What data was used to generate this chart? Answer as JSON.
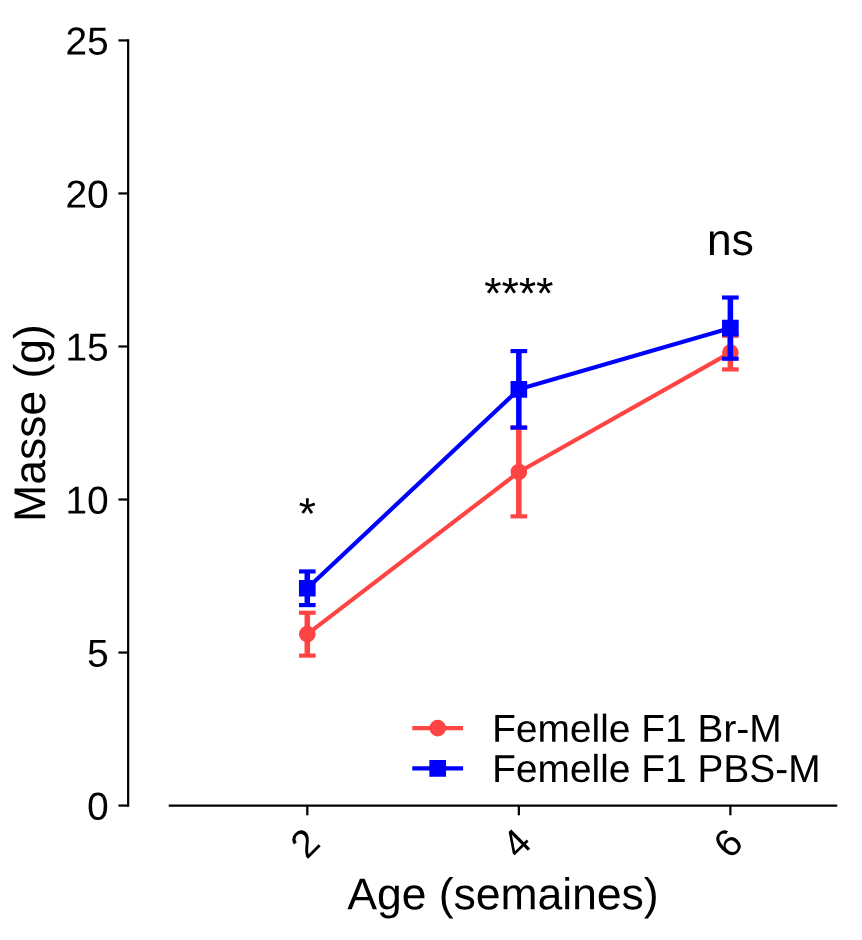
{
  "chart_data": {
    "type": "line",
    "xlabel": "Age (semaines)",
    "ylabel": "Masse (g)",
    "x": [
      2,
      4,
      6
    ],
    "xlim": [
      0.7,
      7
    ],
    "xticks": [
      2,
      4,
      6
    ],
    "series": [
      {
        "name": "Femelle F1 Br-M",
        "color": "#ff4444",
        "marker": "circle",
        "values": [
          5.6,
          10.9,
          14.8
        ],
        "errors": [
          0.7,
          1.45,
          0.55
        ]
      },
      {
        "name": "Femelle F1 PBS-M",
        "color": "#0000ff",
        "marker": "square",
        "values": [
          7.1,
          13.6,
          15.6
        ],
        "errors": [
          0.55,
          1.25,
          1.0
        ]
      }
    ],
    "annotations": [
      "*",
      "****",
      "ns"
    ],
    "ylim": [
      0,
      25
    ],
    "yticks": [
      0,
      5,
      10,
      15,
      20,
      25
    ],
    "grid": false,
    "legend": "bottom right"
  }
}
